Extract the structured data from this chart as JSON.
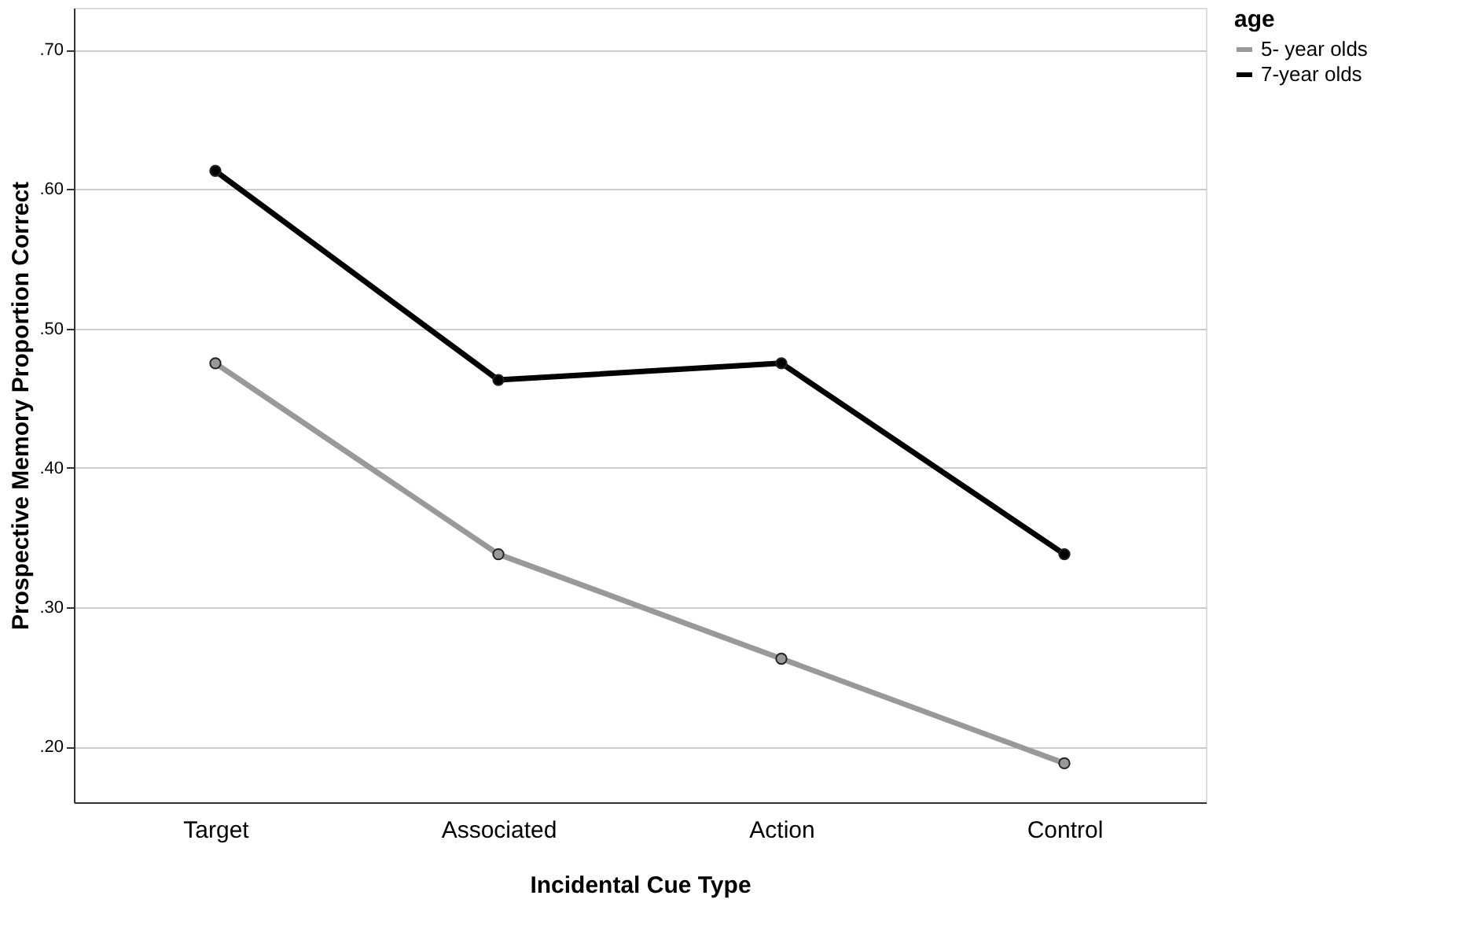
{
  "chart_data": {
    "type": "line",
    "xlabel": "Incidental Cue Type",
    "ylabel": "Prospective Memory Proportion Correct",
    "legend_title": "age",
    "categories": [
      "Target",
      "Associated",
      "Action",
      "Control"
    ],
    "series": [
      {
        "name": "5- year olds",
        "color": "#999999",
        "values": [
          0.475,
          0.338,
          0.263,
          0.188
        ]
      },
      {
        "name": "7-year olds",
        "color": "#000000",
        "values": [
          0.613,
          0.463,
          0.475,
          0.338
        ]
      }
    ],
    "ylim": [
      0.16,
      0.73
    ],
    "yticks": [
      {
        "value": 0.2,
        "label": ".20"
      },
      {
        "value": 0.3,
        "label": ".30"
      },
      {
        "value": 0.4,
        "label": ".40"
      },
      {
        "value": 0.5,
        "label": ".50"
      },
      {
        "value": 0.6,
        "label": ".60"
      },
      {
        "value": 0.7,
        "label": ".70"
      }
    ],
    "grid": "y",
    "legend": "top right",
    "marker": "circle",
    "line_style": "solid"
  }
}
